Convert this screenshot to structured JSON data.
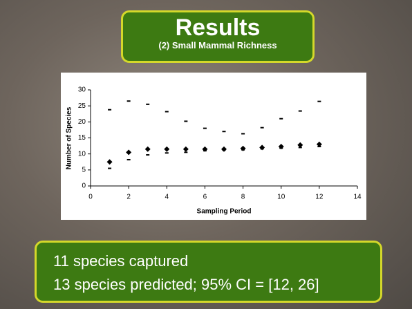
{
  "slide": {
    "title": "Results",
    "subtitle": "(2) Small Mammal Richness",
    "bullets": [
      "11 species captured",
      "13 species predicted; 95% CI = [12, 26]"
    ]
  },
  "chart_data": {
    "type": "scatter",
    "x_label": "Sampling Period",
    "y_label": "Number of Species",
    "x": [
      1,
      2,
      3,
      4,
      5,
      6,
      7,
      8,
      9,
      10,
      11,
      12
    ],
    "series": [
      {
        "marker": "diamond",
        "color": "#000000",
        "values": [
          7.5,
          10.5,
          11.5,
          11.5,
          11.5,
          11.5,
          11.5,
          11.7,
          12,
          12.3,
          12.8,
          13
        ]
      },
      {
        "marker": "dash",
        "color": "#000000",
        "values": [
          23.8,
          26.5,
          25.5,
          23.2,
          20.2,
          18,
          17,
          16.3,
          18.2,
          21,
          23.4,
          26.4
        ]
      },
      {
        "marker": "dash",
        "color": "#000000",
        "values": [
          5.5,
          8.2,
          9.7,
          10.3,
          10.5,
          11,
          11.2,
          11.3,
          11.6,
          11.8,
          12,
          12.3
        ]
      }
    ],
    "xlim": [
      0,
      14
    ],
    "xticks": [
      0,
      2,
      4,
      6,
      8,
      10,
      12,
      14
    ],
    "ylim": [
      0,
      30
    ],
    "yticks": [
      0,
      5,
      10,
      15,
      20,
      25,
      30
    ],
    "grid": false
  }
}
